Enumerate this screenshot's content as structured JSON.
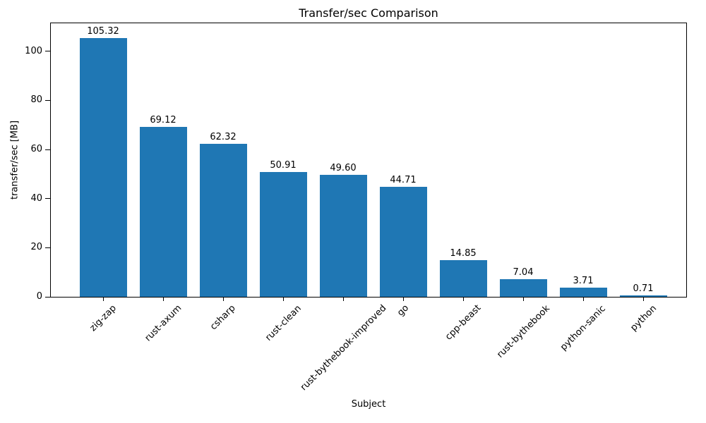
{
  "chart_data": {
    "type": "bar",
    "title": "Transfer/sec Comparison",
    "xlabel": "Subject",
    "ylabel": "transfer/sec [MB]",
    "categories": [
      "zig-zap",
      "rust-axum",
      "csharp",
      "rust-clean",
      "rust-bythebook-improved",
      "go",
      "cpp-beast",
      "rust-bythebook",
      "python-sanic",
      "python"
    ],
    "values": [
      105.32,
      69.12,
      62.32,
      50.91,
      49.6,
      44.71,
      14.85,
      7.04,
      3.71,
      0.71
    ],
    "bar_labels": [
      "105.32",
      "69.12",
      "62.32",
      "50.91",
      "49.60",
      "44.71",
      "14.85",
      "7.04",
      "3.71",
      "0.71"
    ],
    "yticks": [
      0,
      20,
      40,
      60,
      80,
      100
    ],
    "ylim": [
      0,
      111.4
    ],
    "bar_color": "#1f77b4",
    "text_color": "#000000",
    "grid": false,
    "legend": "none",
    "x_label_rotation_deg": 45
  }
}
